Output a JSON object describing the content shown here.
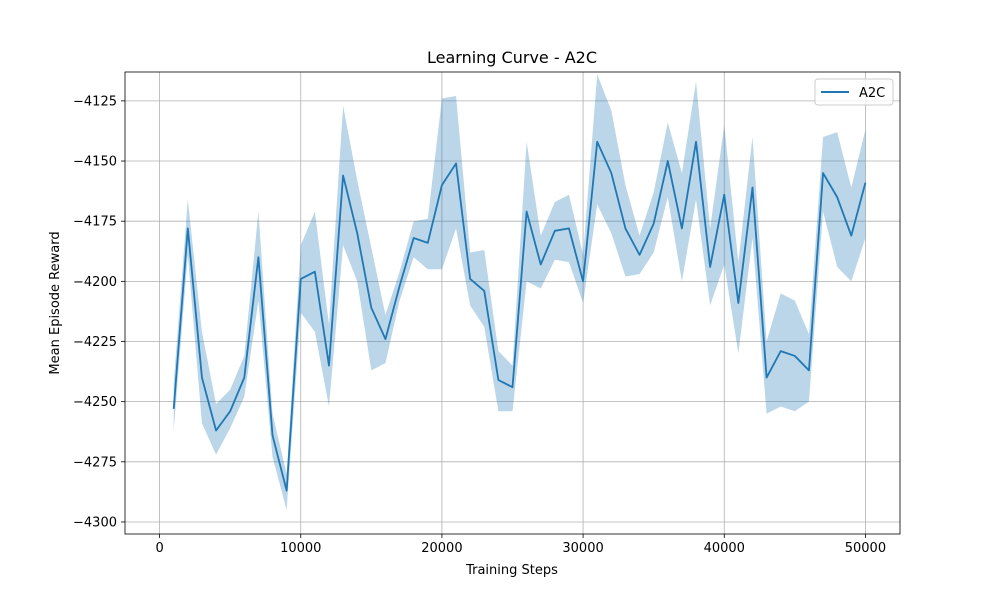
{
  "chart_data": {
    "type": "line",
    "title": "Learning Curve - A2C",
    "xlabel": "Training Steps",
    "ylabel": "Mean Episode Reward",
    "xlim": [
      -2450,
      52450
    ],
    "ylim": [
      -4305,
      -4113
    ],
    "xticks": [
      0,
      10000,
      20000,
      30000,
      40000,
      50000
    ],
    "xtick_labels": [
      "0",
      "10000",
      "20000",
      "30000",
      "40000",
      "50000"
    ],
    "yticks": [
      -4300,
      -4275,
      -4250,
      -4225,
      -4200,
      -4175,
      -4150,
      -4125
    ],
    "ytick_labels": [
      "−4300",
      "−4275",
      "−4250",
      "−4225",
      "−4200",
      "−4175",
      "−4150",
      "−4125"
    ],
    "grid": true,
    "legend_position": "top-right",
    "x": [
      1000,
      2000,
      3000,
      4000,
      5000,
      6000,
      7000,
      8000,
      9000,
      10000,
      11000,
      12000,
      13000,
      14000,
      15000,
      16000,
      17000,
      18000,
      19000,
      20000,
      21000,
      22000,
      23000,
      24000,
      25000,
      26000,
      27000,
      28000,
      29000,
      30000,
      31000,
      32000,
      33000,
      34000,
      35000,
      36000,
      37000,
      38000,
      39000,
      40000,
      41000,
      42000,
      43000,
      44000,
      45000,
      46000,
      47000,
      48000,
      49000,
      50000
    ],
    "series": [
      {
        "name": "A2C",
        "color": "#1f77b4",
        "band_color": "#1f77b4",
        "values": [
          -4253,
          -4178,
          -4240,
          -4262,
          -4254,
          -4240,
          -4190,
          -4264,
          -4287,
          -4199,
          -4196,
          -4235,
          -4156,
          -4180,
          -4211,
          -4224,
          -4202,
          -4182,
          -4184,
          -4160,
          -4151,
          -4199,
          -4204,
          -4241,
          -4244,
          -4171,
          -4193,
          -4179,
          -4178,
          -4200,
          -4142,
          -4155,
          -4178,
          -4189,
          -4176,
          -4150,
          -4178,
          -4142,
          -4194,
          -4164,
          -4209,
          -4161,
          -4240,
          -4229,
          -4231,
          -4237,
          -4155,
          -4165,
          -4181,
          -4159
        ],
        "upper": [
          -4242,
          -4166,
          -4221,
          -4251,
          -4245,
          -4231,
          -4171,
          -4255,
          -4280,
          -4185,
          -4171,
          -4218,
          -4127,
          -4158,
          -4186,
          -4214,
          -4196,
          -4175,
          -4174,
          -4124,
          -4123,
          -4188,
          -4187,
          -4229,
          -4235,
          -4142,
          -4181,
          -4167,
          -4164,
          -4189,
          -4114,
          -4129,
          -4160,
          -4181,
          -4163,
          -4134,
          -4155,
          -4117,
          -4178,
          -4135,
          -4192,
          -4140,
          -4225,
          -4205,
          -4208,
          -4222,
          -4140,
          -4138,
          -4161,
          -4137
        ],
        "lower": [
          -4262,
          -4189,
          -4259,
          -4272,
          -4261,
          -4248,
          -4208,
          -4273,
          -4295,
          -4213,
          -4221,
          -4252,
          -4185,
          -4200,
          -4237,
          -4234,
          -4208,
          -4190,
          -4195,
          -4195,
          -4178,
          -4210,
          -4219,
          -4254,
          -4254,
          -4200,
          -4203,
          -4191,
          -4192,
          -4209,
          -4168,
          -4180,
          -4198,
          -4197,
          -4188,
          -4165,
          -4200,
          -4166,
          -4210,
          -4193,
          -4230,
          -4182,
          -4255,
          -4252,
          -4254,
          -4250,
          -4171,
          -4194,
          -4200,
          -4182
        ]
      }
    ]
  }
}
